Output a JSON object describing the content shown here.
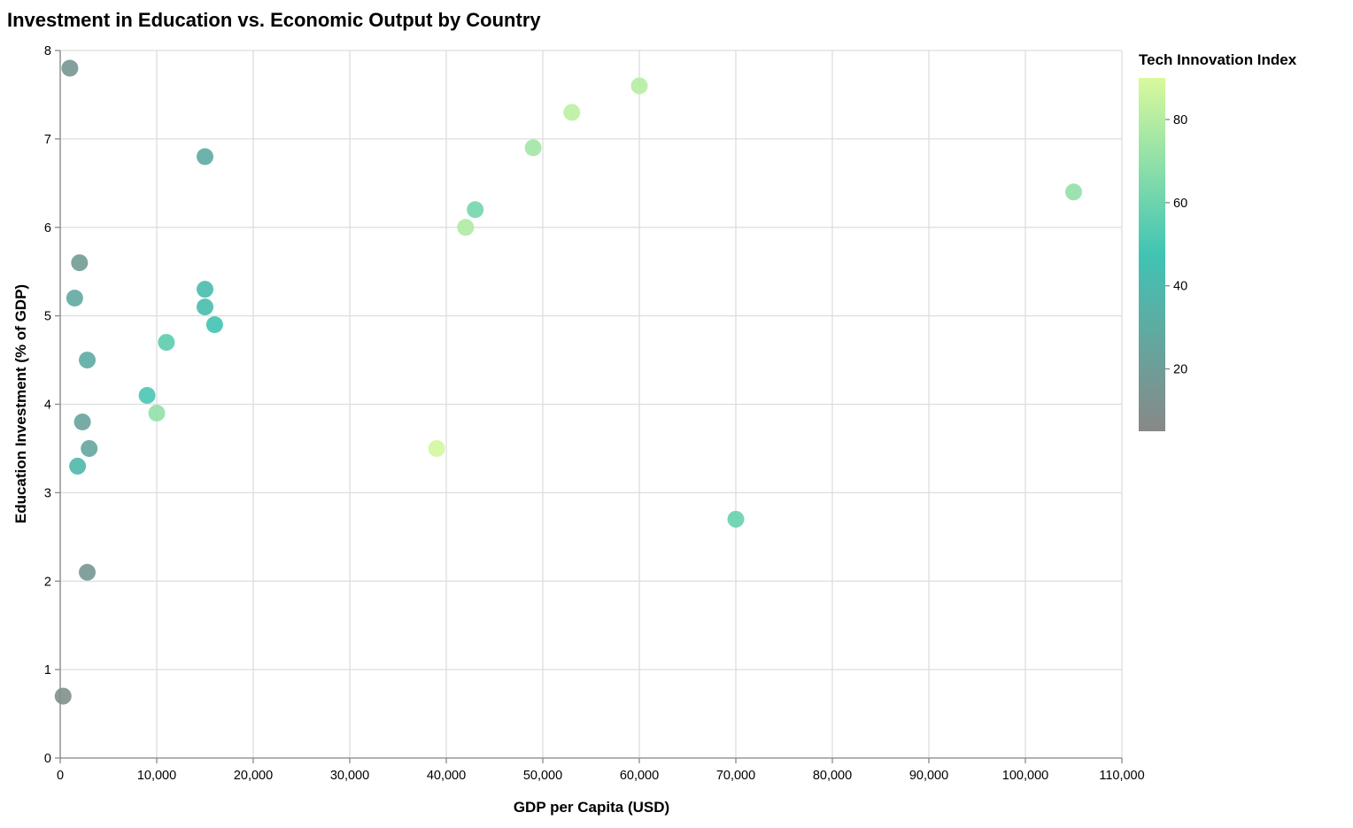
{
  "chart_data": {
    "type": "scatter",
    "title": "Investment in Education vs. Economic Output by Country",
    "xlabel": "GDP per Capita (USD)",
    "ylabel": "Education Investment (% of GDP)",
    "xlim": [
      0,
      110000
    ],
    "ylim": [
      0,
      8
    ],
    "x_ticks": [
      0,
      10000,
      20000,
      30000,
      40000,
      50000,
      60000,
      70000,
      80000,
      90000,
      100000,
      110000
    ],
    "x_tick_labels": [
      "0",
      "10,000",
      "20,000",
      "30,000",
      "40,000",
      "50,000",
      "60,000",
      "70,000",
      "80,000",
      "90,000",
      "100,000",
      "110,000"
    ],
    "y_ticks": [
      0,
      1,
      2,
      3,
      4,
      5,
      6,
      7,
      8
    ],
    "y_tick_labels": [
      "0",
      "1",
      "2",
      "3",
      "4",
      "5",
      "6",
      "7",
      "8"
    ],
    "grid": true,
    "legend": {
      "title": "Tech Innovation Index",
      "placement": "right",
      "domain": [
        5,
        90
      ],
      "ticks": [
        20,
        40,
        60,
        80
      ],
      "tick_labels": [
        "20",
        "40",
        "60",
        "80"
      ],
      "color_stops": [
        "#888888",
        "#40c4b4",
        "#d9f99d"
      ]
    },
    "points": [
      {
        "x": 1000,
        "y": 7.8,
        "c": 15
      },
      {
        "x": 15000,
        "y": 6.8,
        "c": 30
      },
      {
        "x": 2000,
        "y": 5.6,
        "c": 18
      },
      {
        "x": 1500,
        "y": 5.2,
        "c": 28
      },
      {
        "x": 2800,
        "y": 4.5,
        "c": 30
      },
      {
        "x": 2300,
        "y": 3.8,
        "c": 24
      },
      {
        "x": 3000,
        "y": 3.5,
        "c": 26
      },
      {
        "x": 1800,
        "y": 3.3,
        "c": 38
      },
      {
        "x": 2800,
        "y": 2.1,
        "c": 15
      },
      {
        "x": 300,
        "y": 0.7,
        "c": 10
      },
      {
        "x": 15000,
        "y": 5.3,
        "c": 42
      },
      {
        "x": 15000,
        "y": 5.1,
        "c": 42
      },
      {
        "x": 16000,
        "y": 4.9,
        "c": 47
      },
      {
        "x": 11000,
        "y": 4.7,
        "c": 55
      },
      {
        "x": 9000,
        "y": 4.1,
        "c": 50
      },
      {
        "x": 10000,
        "y": 3.9,
        "c": 70
      },
      {
        "x": 39000,
        "y": 3.5,
        "c": 88
      },
      {
        "x": 42000,
        "y": 6.0,
        "c": 78
      },
      {
        "x": 43000,
        "y": 6.2,
        "c": 62
      },
      {
        "x": 49000,
        "y": 6.9,
        "c": 75
      },
      {
        "x": 53000,
        "y": 7.3,
        "c": 82
      },
      {
        "x": 60000,
        "y": 7.6,
        "c": 80
      },
      {
        "x": 70000,
        "y": 2.7,
        "c": 58
      },
      {
        "x": 105000,
        "y": 6.4,
        "c": 70
      }
    ]
  }
}
